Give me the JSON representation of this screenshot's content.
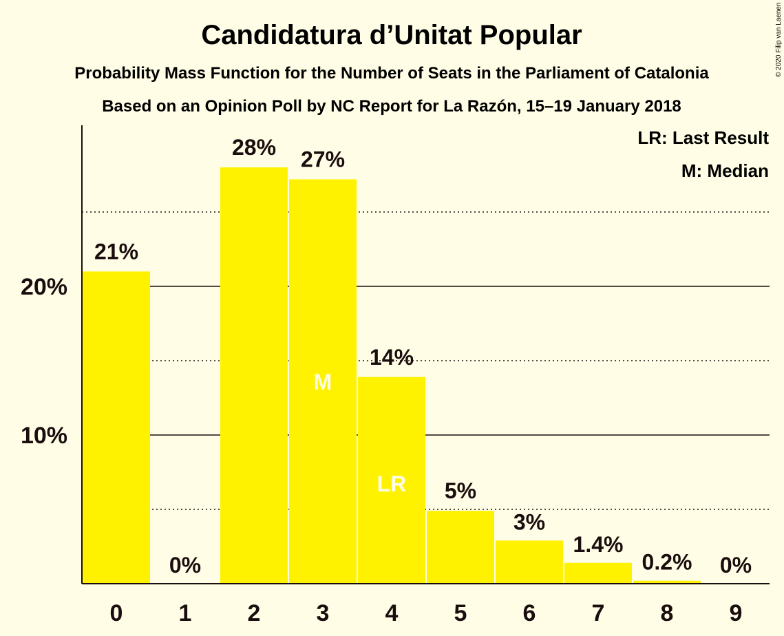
{
  "chart_data": {
    "type": "bar",
    "title": "Candidatura d’Unitat Popular",
    "subtitle": "Probability Mass Function for the Number of Seats in the Parliament of Catalonia",
    "subtitle2": "Based on an Opinion Poll by NC Report for La Razón, 15–19 January 2018",
    "categories": [
      "0",
      "1",
      "2",
      "3",
      "4",
      "5",
      "6",
      "7",
      "8",
      "9"
    ],
    "values": [
      21,
      0,
      28,
      27.2,
      13.9,
      4.9,
      2.9,
      1.4,
      0.2,
      0
    ],
    "data_labels": [
      "21%",
      "0%",
      "28%",
      "27%",
      "14%",
      "5%",
      "3%",
      "1.4%",
      "0.2%",
      "0%"
    ],
    "markers": [
      {
        "category": "3",
        "text": "M"
      },
      {
        "category": "4",
        "text": "LR"
      }
    ],
    "legend": [
      "LR: Last Result",
      "M: Median"
    ],
    "legend_position": "top-right",
    "ylim": [
      0,
      30.8
    ],
    "major_ticks": [
      10,
      20
    ],
    "major_tick_labels": [
      "10%",
      "20%"
    ],
    "minor_gridlines": [
      5,
      15,
      25
    ],
    "grid": true,
    "bar_color": "#FFF200",
    "background_color": "#FFFDE6",
    "text_color": "#1A0D0D",
    "marker_color": "#FFFDE6",
    "copyright": "© 2020 Filip van Laenen"
  }
}
